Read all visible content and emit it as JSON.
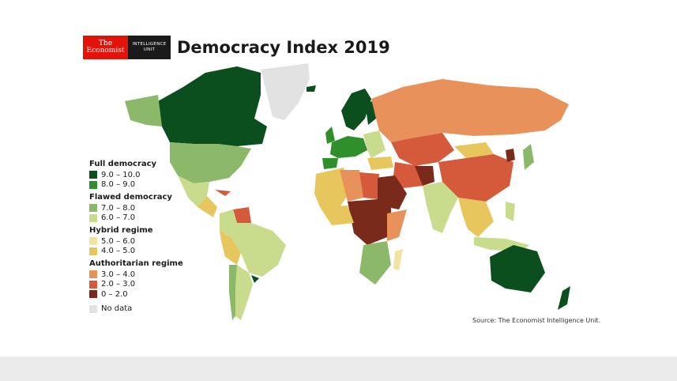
{
  "header": {
    "logo_economist_line1": "The",
    "logo_economist_line2": "Economist",
    "logo_eiu_line1": "INTELLIGENCE",
    "logo_eiu_line2": "UNIT",
    "title": "Democracy Index 2019"
  },
  "legend": {
    "groups": [
      {
        "title": "Full democracy",
        "items": [
          {
            "label": "9.0 – 10.0",
            "color": "#0b4f1e"
          },
          {
            "label": "8.0 – 9.0",
            "color": "#2f8f2a"
          }
        ]
      },
      {
        "title": "Flawed democracy",
        "items": [
          {
            "label": "7.0 – 8.0",
            "color": "#8cb86a"
          },
          {
            "label": "6.0 – 7.0",
            "color": "#c9dc8e"
          }
        ]
      },
      {
        "title": "Hybrid regime",
        "items": [
          {
            "label": "5.0 – 6.0",
            "color": "#f2e3a1"
          },
          {
            "label": "4.0 – 5.0",
            "color": "#e8c65e"
          }
        ]
      },
      {
        "title": "Authoritarian regime",
        "items": [
          {
            "label": "3.0 – 4.0",
            "color": "#e8915a"
          },
          {
            "label": "2.0 – 3.0",
            "color": "#d45a3b"
          },
          {
            "label": "0 – 2.0",
            "color": "#7a2a1b"
          }
        ]
      }
    ],
    "no_data": {
      "label": "No data",
      "color": "#e2e2e2"
    }
  },
  "source": "Source: The Economist Intelligence Unit."
}
